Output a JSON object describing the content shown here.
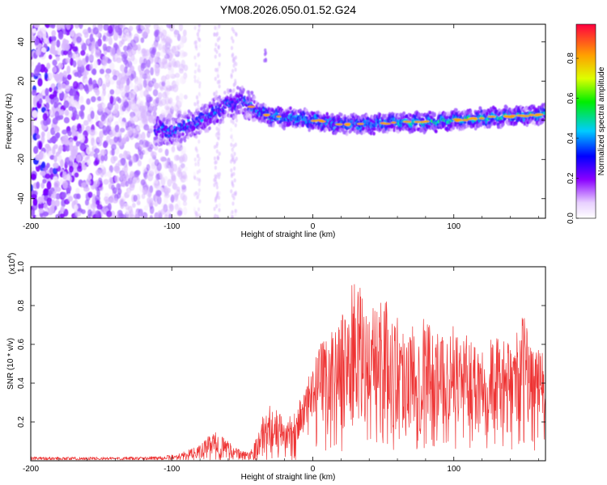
{
  "figure_title": "YM08.2026.050.01.52.G24",
  "chart_data": [
    {
      "type": "heatmap",
      "title": "YM08.2026.050.01.52.G24",
      "xlabel": "Height of straight line (km)",
      "ylabel": "Frequency (Hz)",
      "xlim": [
        -200,
        165
      ],
      "ylim": [
        -50,
        49
      ],
      "xticks": [
        -200,
        -100,
        0,
        100
      ],
      "yticks": [
        -40,
        -20,
        0,
        20,
        40
      ],
      "xtick_labels": [
        "-200",
        "-100",
        "0",
        "100"
      ],
      "ytick_labels": [
        "-40",
        "-20",
        "0",
        "20",
        "40"
      ],
      "colorbar": {
        "label": "Normalized spectral amplitude",
        "range": [
          0,
          0.97
        ],
        "ticks": [
          0,
          0.2,
          0.4,
          0.6,
          0.8
        ],
        "tick_labels": [
          "0.0",
          "0.2",
          "0.4",
          "0.6",
          "0.8"
        ],
        "colormap": "rainbow (purple-blue-cyan-green-yellow-orange-red)"
      },
      "ridge": {
        "description": "dominant Doppler-shifted frequency track",
        "x": [
          -110,
          -100,
          -90,
          -80,
          -70,
          -60,
          -50,
          -40,
          -30,
          -20,
          -10,
          0,
          10,
          20,
          40,
          60,
          80,
          100,
          120,
          140,
          165
        ],
        "y": [
          -5,
          -6,
          -3,
          0,
          4,
          8,
          10,
          5,
          2,
          1,
          1,
          0,
          -1,
          -2,
          -2,
          -1,
          -1,
          0,
          1,
          2,
          3
        ]
      }
    },
    {
      "type": "line",
      "title": "",
      "xlabel": "Height of straight line (km)",
      "ylabel": "SNR (10 * v/v)",
      "y_multiplier": "(x10^4)",
      "y_multiplier_base": "(x10",
      "y_multiplier_exp": "4",
      "xlim": [
        -200,
        165
      ],
      "ylim": [
        0,
        1.0
      ],
      "xticks": [
        -200,
        -100,
        0,
        100
      ],
      "xtick_labels": [
        "-200",
        "-100",
        "0",
        "100"
      ],
      "yticks": [
        0.2,
        0.4,
        0.6,
        0.8,
        1.0
      ],
      "ytick_labels": [
        "0.2",
        "0.4",
        "0.6",
        "0.8",
        "1.0"
      ],
      "series": [
        {
          "name": "SNR",
          "color": "#ee3333",
          "envelope_x": [
            -200,
            -150,
            -120,
            -100,
            -90,
            -80,
            -75,
            -70,
            -65,
            -60,
            -55,
            -50,
            -45,
            -40,
            -35,
            -30,
            -25,
            -20,
            -15,
            -10,
            -5,
            0,
            5,
            10,
            15,
            20,
            25,
            30,
            35,
            40,
            45,
            50,
            55,
            60,
            70,
            80,
            90,
            100,
            110,
            120,
            130,
            140,
            150,
            155,
            160,
            165
          ],
          "envelope_y": [
            0.02,
            0.02,
            0.02,
            0.03,
            0.05,
            0.08,
            0.12,
            0.15,
            0.13,
            0.11,
            0.07,
            0.05,
            0.05,
            0.12,
            0.24,
            0.3,
            0.26,
            0.22,
            0.24,
            0.3,
            0.36,
            0.45,
            0.55,
            0.62,
            0.66,
            0.7,
            0.8,
            0.92,
            0.82,
            0.72,
            0.78,
            0.85,
            0.7,
            0.72,
            0.66,
            0.72,
            0.6,
            0.66,
            0.6,
            0.62,
            0.6,
            0.56,
            0.72,
            0.6,
            0.55,
            0.52
          ]
        }
      ]
    }
  ]
}
